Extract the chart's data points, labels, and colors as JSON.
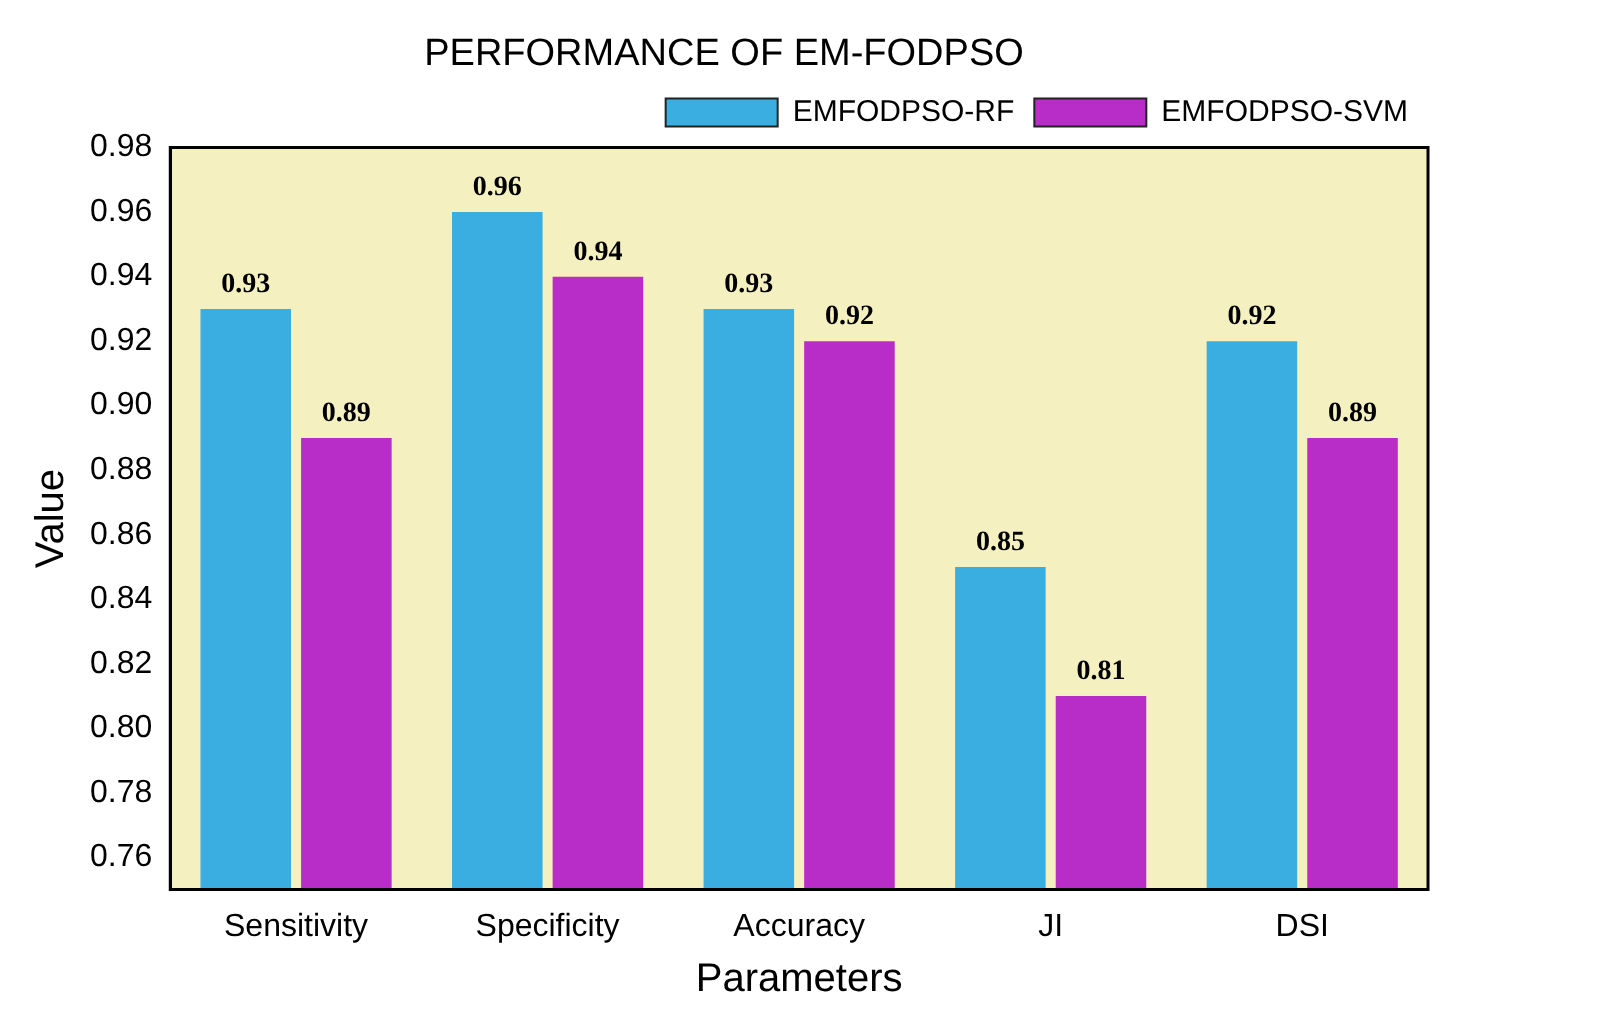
{
  "chart_data": {
    "type": "bar",
    "title": "PERFORMANCE OF EM-FODPSO",
    "xlabel": "Parameters",
    "ylabel": "Value",
    "categories": [
      "Sensitivity",
      "Specificity",
      "Accuracy",
      "JI",
      "DSI"
    ],
    "series": [
      {
        "name": "EMFODPSO-RF",
        "color": "#3aaee0",
        "values": [
          0.93,
          0.96,
          0.93,
          0.85,
          0.92
        ]
      },
      {
        "name": "EMFODPSO-SVM",
        "color": "#b82cc8",
        "values": [
          0.89,
          0.94,
          0.92,
          0.81,
          0.89
        ]
      }
    ],
    "ylim": [
      0.75,
      0.98
    ],
    "yticks": [
      0.76,
      0.78,
      {
        "value": 0.8,
        "label": "0.80"
      },
      0.82,
      0.84,
      0.86,
      0.88,
      {
        "value": 0.9,
        "label": "0.90"
      },
      0.92,
      0.94,
      0.96,
      0.98
    ],
    "data_labels": true,
    "legend": "top right",
    "grid": false
  }
}
